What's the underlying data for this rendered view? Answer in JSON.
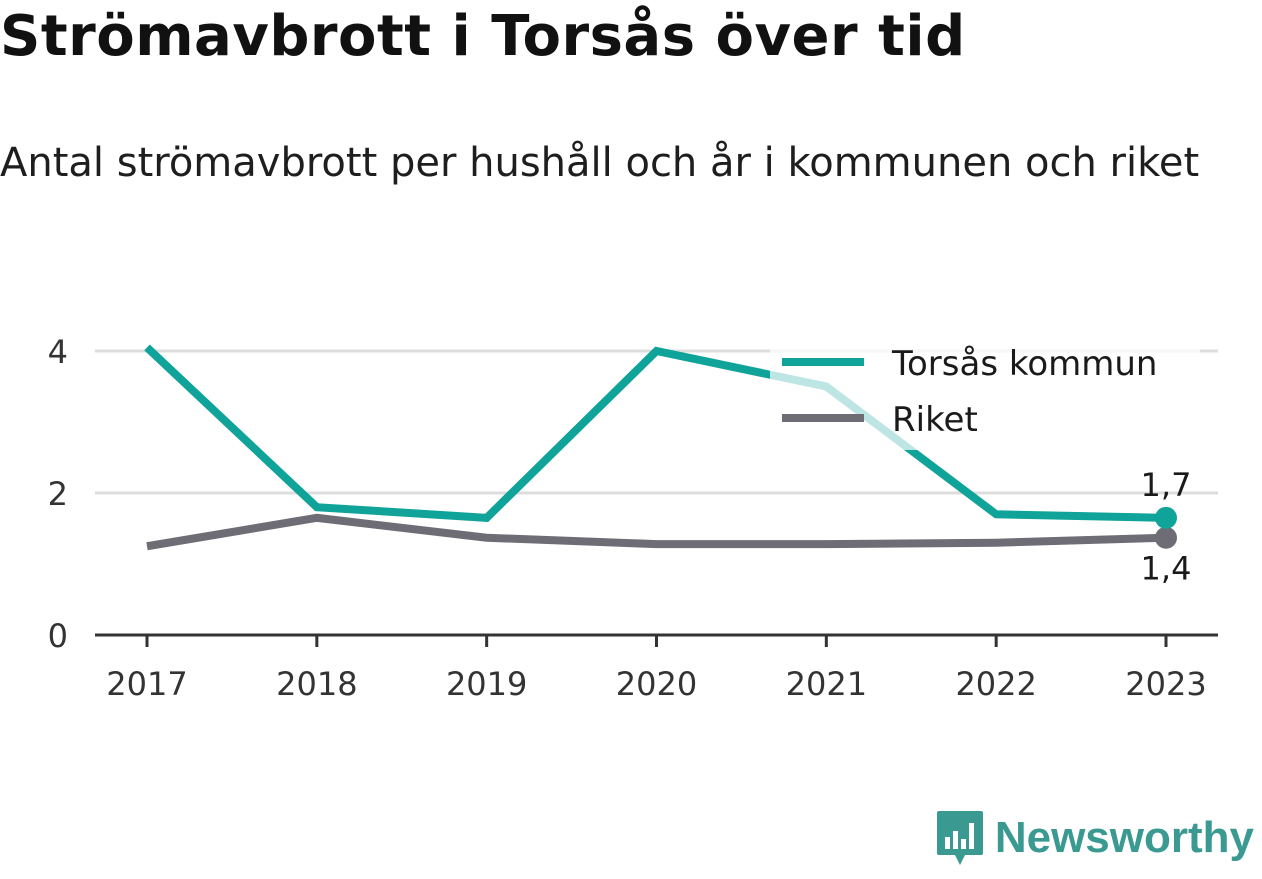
{
  "title": "Strömavbrott i Torsås över tid",
  "subtitle": "Antal strömavbrott per hushåll och år i kommunen och riket",
  "brand": {
    "name": "Newsworthy",
    "icon": "newsworthy-logo-icon",
    "color": "#3a9a92"
  },
  "chart_data": {
    "type": "line",
    "categories": [
      "2017",
      "2018",
      "2019",
      "2020",
      "2021",
      "2022",
      "2023"
    ],
    "yticks": [
      "0",
      "2",
      "4"
    ],
    "ylim": [
      0,
      4.2
    ],
    "grid": true,
    "legend_placement": "top-right",
    "series": [
      {
        "name": "Torsås kommun",
        "color": "#0fa399",
        "values": [
          4.05,
          1.8,
          1.65,
          4.0,
          3.5,
          1.7,
          1.65
        ],
        "end_label": "1,7"
      },
      {
        "name": "Riket",
        "color": "#6e6d75",
        "values": [
          1.25,
          1.65,
          1.37,
          1.28,
          1.28,
          1.3,
          1.37
        ],
        "end_label": "1,4"
      }
    ]
  }
}
